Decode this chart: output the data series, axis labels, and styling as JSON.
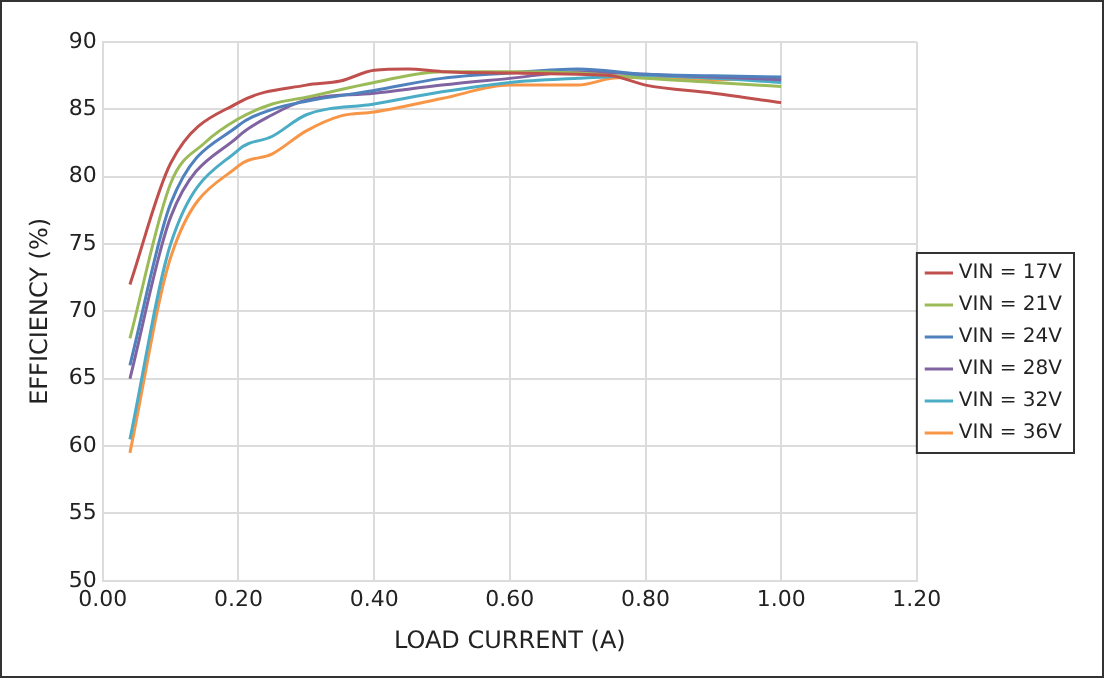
{
  "chart_data": {
    "type": "line",
    "xlabel": "LOAD CURRENT (A)",
    "ylabel": "EFFICIENCY (%)",
    "xlim": [
      0,
      1.2
    ],
    "xticks": [
      {
        "value": 0,
        "label": "0.00"
      },
      {
        "value": 0.2,
        "label": "0.20"
      },
      {
        "value": 0.4,
        "label": "0.40"
      },
      {
        "value": 0.6,
        "label": "0.60"
      },
      {
        "value": 0.8,
        "label": "0.80"
      },
      {
        "value": 1,
        "label": "1.00"
      },
      {
        "value": 1.2,
        "label": "1.20"
      }
    ],
    "ylim": [
      50,
      90
    ],
    "yticks": [
      50,
      55,
      60,
      65,
      70,
      75,
      80,
      85,
      90
    ],
    "grid": true,
    "legend": "right",
    "marker": "none",
    "line_style": "solid",
    "series": [
      {
        "name": "VIN = 17V",
        "color": "#c0504d",
        "x": [
          0.04,
          0.1,
          0.2,
          0.3,
          0.35,
          0.4,
          0.45,
          0.5,
          0.6,
          0.7,
          0.75,
          0.8,
          0.9,
          1.0
        ],
        "values": [
          72,
          81,
          85.5,
          86.8,
          87.1,
          87.9,
          88,
          87.8,
          87.7,
          87.6,
          87.5,
          86.8,
          86.2,
          85.5
        ]
      },
      {
        "name": "VIN = 21V",
        "color": "#9bbb59",
        "x": [
          0.04,
          0.1,
          0.15,
          0.2,
          0.25,
          0.3,
          0.4,
          0.5,
          0.6,
          0.7,
          0.8,
          0.9,
          1.0
        ],
        "values": [
          68,
          79.5,
          82.5,
          84.3,
          85.4,
          85.9,
          87,
          87.8,
          87.8,
          87.7,
          87.3,
          87,
          86.7
        ]
      },
      {
        "name": "VIN = 24V",
        "color": "#4f81bd",
        "x": [
          0.04,
          0.1,
          0.2,
          0.25,
          0.3,
          0.4,
          0.5,
          0.6,
          0.7,
          0.8,
          0.9,
          1.0
        ],
        "values": [
          66,
          78,
          83.8,
          85,
          85.6,
          86.4,
          87.3,
          87.7,
          88,
          87.6,
          87.5,
          87.4
        ]
      },
      {
        "name": "VIN = 28V",
        "color": "#8064a2",
        "x": [
          0.04,
          0.1,
          0.2,
          0.25,
          0.3,
          0.4,
          0.5,
          0.6,
          0.7,
          0.8,
          0.9,
          1.0
        ],
        "values": [
          65,
          77,
          83,
          84.6,
          85.7,
          86.2,
          86.8,
          87.3,
          87.8,
          87.6,
          87.4,
          87.2
        ]
      },
      {
        "name": "VIN = 32V",
        "color": "#4bacc6",
        "x": [
          0.04,
          0.1,
          0.2,
          0.25,
          0.3,
          0.4,
          0.5,
          0.6,
          0.7,
          0.8,
          0.9,
          1.0
        ],
        "values": [
          60.5,
          75,
          82,
          83,
          84.6,
          85.4,
          86.3,
          87,
          87.3,
          87.5,
          87.3,
          87
        ]
      },
      {
        "name": "VIN = 36V",
        "color": "#f79646",
        "x": [
          0.04,
          0.1,
          0.2,
          0.25,
          0.3,
          0.35,
          0.4,
          0.5,
          0.6,
          0.7,
          0.75,
          0.8,
          0.9,
          1.0
        ],
        "values": [
          59.5,
          74,
          80.8,
          81.7,
          83.4,
          84.5,
          84.8,
          85.8,
          86.8,
          86.8,
          87.3,
          87.4,
          87.2,
          87.3
        ]
      }
    ]
  }
}
